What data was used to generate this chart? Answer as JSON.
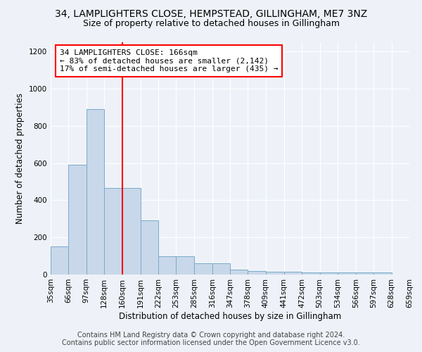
{
  "title_line1": "34, LAMPLIGHTERS CLOSE, HEMPSTEAD, GILLINGHAM, ME7 3NZ",
  "title_line2": "Size of property relative to detached houses in Gillingham",
  "xlabel": "Distribution of detached houses by size in Gillingham",
  "ylabel": "Number of detached properties",
  "footnote1": "Contains HM Land Registry data © Crown copyright and database right 2024.",
  "footnote2": "Contains public sector information licensed under the Open Government Licence v3.0.",
  "bin_edges": [
    35,
    66,
    97,
    128,
    160,
    191,
    222,
    253,
    285,
    316,
    347,
    378,
    409,
    441,
    472,
    503,
    534,
    566,
    597,
    628,
    659
  ],
  "bar_heights": [
    150,
    590,
    890,
    465,
    465,
    290,
    100,
    100,
    60,
    60,
    25,
    20,
    15,
    15,
    10,
    10,
    10,
    10,
    10,
    0
  ],
  "bar_color": "#c8d8ea",
  "bar_edge_color": "#7aaac8",
  "property_line_x": 160,
  "property_line_color": "red",
  "annotation_text": "34 LAMPLIGHTERS CLOSE: 166sqm\n← 83% of detached houses are smaller (2,142)\n17% of semi-detached houses are larger (435) →",
  "annotation_box_color": "white",
  "annotation_box_edge_color": "red",
  "ylim": [
    0,
    1250
  ],
  "yticks": [
    0,
    200,
    400,
    600,
    800,
    1000,
    1200
  ],
  "bg_color": "#eef2f8",
  "grid_color": "white",
  "title_fontsize": 10,
  "subtitle_fontsize": 9,
  "axis_label_fontsize": 8.5,
  "tick_fontsize": 7.5,
  "annotation_fontsize": 8,
  "footnote_fontsize": 7
}
